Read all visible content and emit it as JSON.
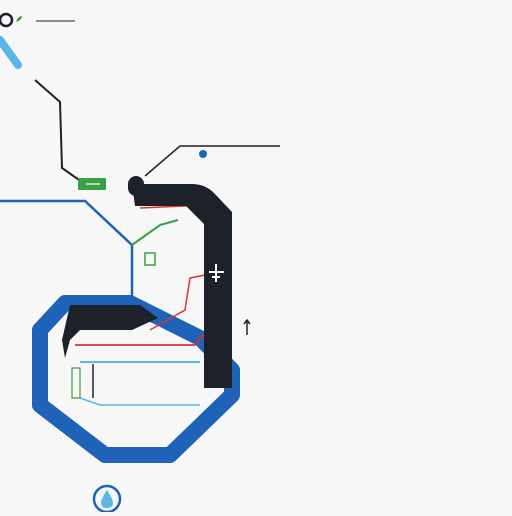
{
  "colors": {
    "background": "#f7f7f8",
    "blue_line": "#1f63b8",
    "light_blue_line": "#5bb6e6",
    "dark_line": "#1d2129",
    "red_line": "#d6362e",
    "green_line": "#3aa043",
    "thin_black": "#222222"
  },
  "icons": {
    "top_left": "circle-icon",
    "top_label": "leaf-icon",
    "airport": "airplane-icon",
    "arrow": "up-arrow-icon",
    "bottom": "water-drop-icon"
  }
}
